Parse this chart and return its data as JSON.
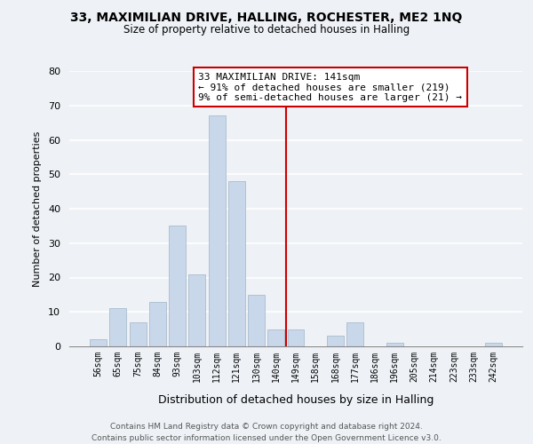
{
  "title": "33, MAXIMILIAN DRIVE, HALLING, ROCHESTER, ME2 1NQ",
  "subtitle": "Size of property relative to detached houses in Halling",
  "xlabel": "Distribution of detached houses by size in Halling",
  "ylabel": "Number of detached properties",
  "bar_color": "#c8d8ea",
  "bar_edge_color": "#aabccc",
  "bin_labels": [
    "56sqm",
    "65sqm",
    "75sqm",
    "84sqm",
    "93sqm",
    "103sqm",
    "112sqm",
    "121sqm",
    "130sqm",
    "140sqm",
    "149sqm",
    "158sqm",
    "168sqm",
    "177sqm",
    "186sqm",
    "196sqm",
    "205sqm",
    "214sqm",
    "223sqm",
    "233sqm",
    "242sqm"
  ],
  "bar_heights": [
    2,
    11,
    7,
    13,
    35,
    21,
    67,
    48,
    15,
    5,
    5,
    0,
    3,
    7,
    0,
    1,
    0,
    0,
    0,
    0,
    1
  ],
  "vline_x": 9.5,
  "vline_color": "#cc0000",
  "annotation_title": "33 MAXIMILIAN DRIVE: 141sqm",
  "annotation_line1": "← 91% of detached houses are smaller (219)",
  "annotation_line2": "9% of semi-detached houses are larger (21) →",
  "ylim": [
    0,
    80
  ],
  "yticks": [
    0,
    10,
    20,
    30,
    40,
    50,
    60,
    70,
    80
  ],
  "footer1": "Contains HM Land Registry data © Crown copyright and database right 2024.",
  "footer2": "Contains public sector information licensed under the Open Government Licence v3.0.",
  "background_color": "#eef2f7",
  "plot_bg_color": "#eef2f7"
}
